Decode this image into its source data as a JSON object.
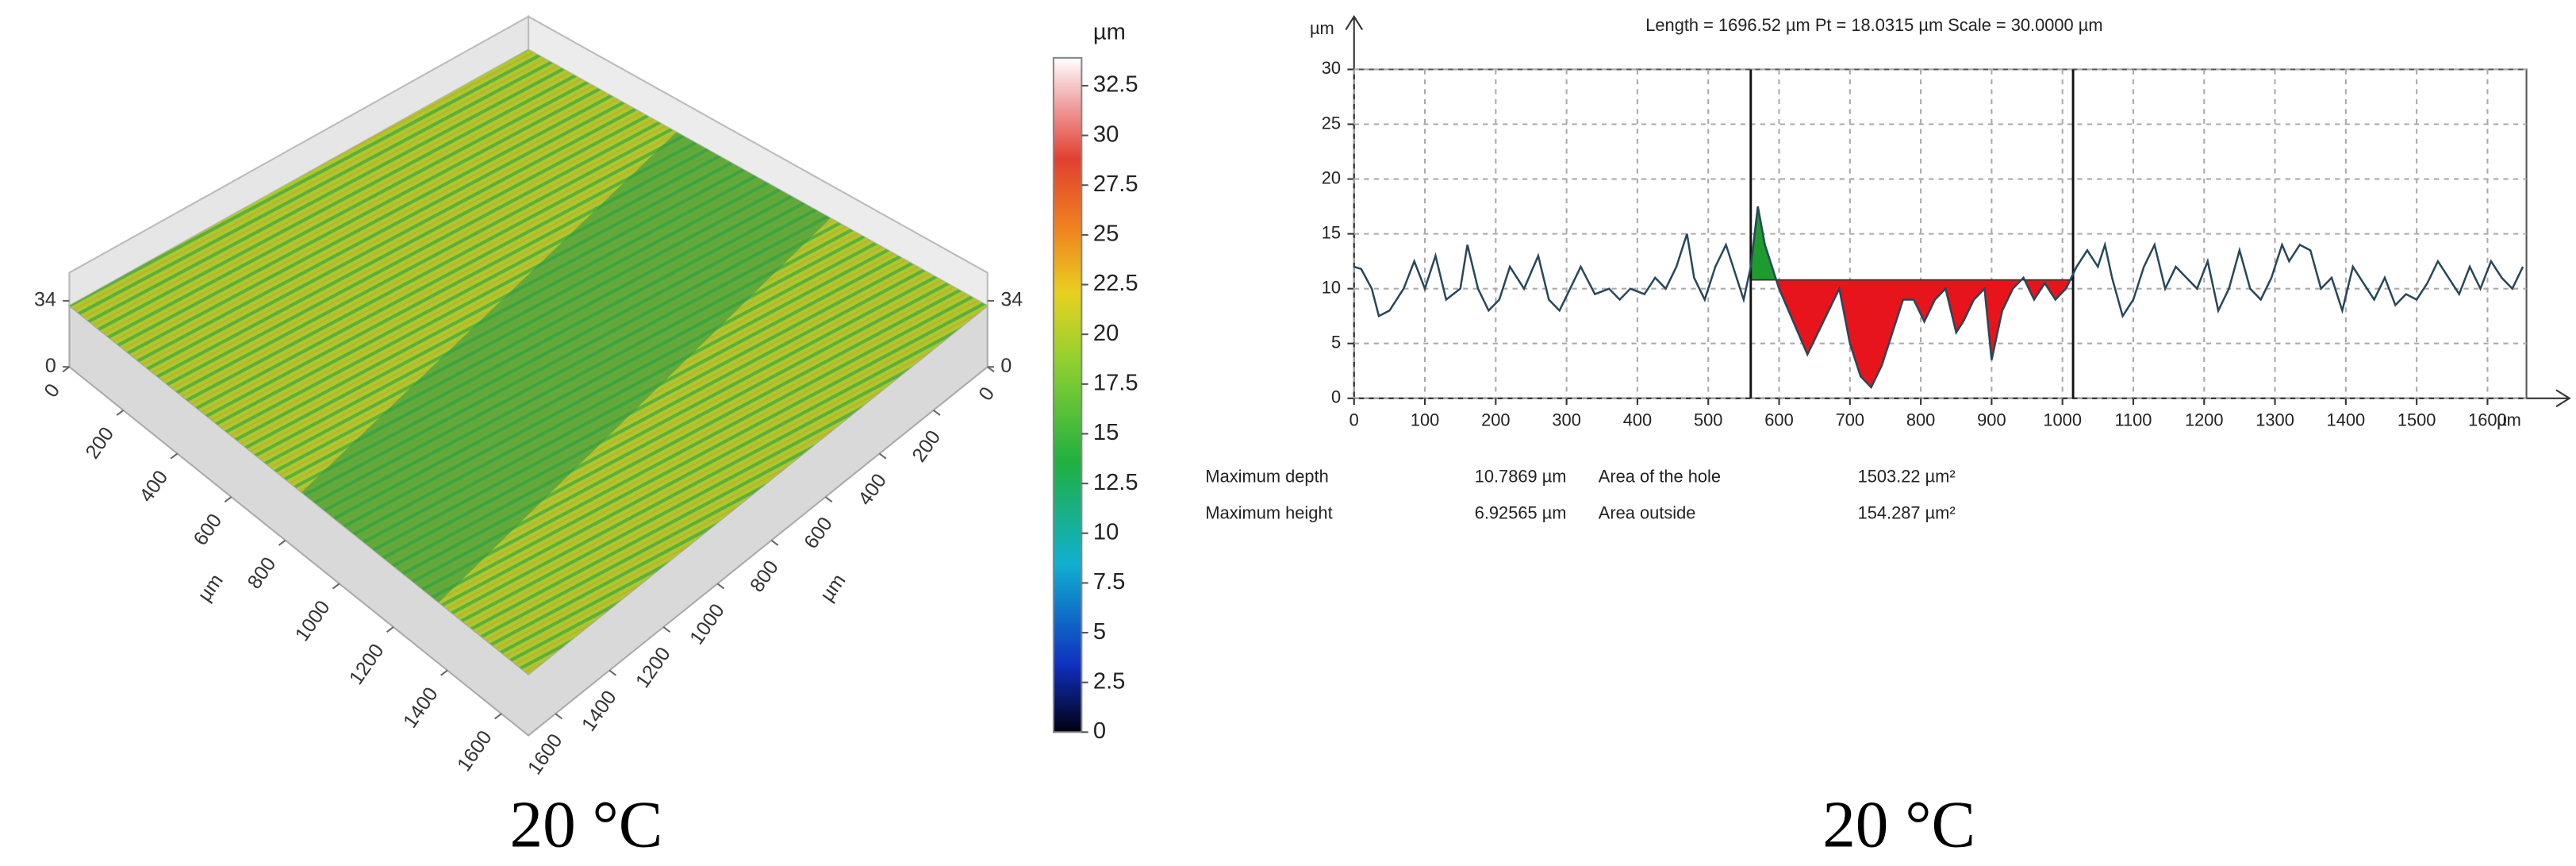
{
  "chart_data": [
    {
      "type": "surface",
      "caption": "20 °C",
      "xlim": [
        0,
        1700
      ],
      "xticks": [
        0,
        200,
        400,
        600,
        800,
        1000,
        1200,
        1400,
        1600
      ],
      "xlabel": "µm",
      "ylim": [
        0,
        1700
      ],
      "yticks": [
        0,
        200,
        400,
        600,
        800,
        1000,
        1200,
        1400,
        1600
      ],
      "ylabel": "µm",
      "zlim": [
        0,
        34
      ],
      "zticks": [
        0,
        34
      ],
      "colorbar": {
        "unit": "µm",
        "clim": [
          0,
          33.9
        ],
        "ticks": [
          0,
          2.5,
          5,
          7.5,
          10,
          12.5,
          15,
          17.5,
          20,
          22.5,
          25,
          27.5,
          30,
          32.5
        ]
      }
    },
    {
      "type": "line",
      "caption": "20 °C",
      "header": "Length = 1696.52 µm  Pt = 18.0315 µm  Scale = 30.0000 µm",
      "xlabel": "µm",
      "ylabel": "µm",
      "xlim": [
        0,
        1655
      ],
      "xticks": [
        0,
        100,
        200,
        300,
        400,
        500,
        600,
        700,
        800,
        900,
        1000,
        1100,
        1200,
        1300,
        1400,
        1500,
        1600
      ],
      "ylim": [
        0,
        30
      ],
      "yticks": [
        0,
        5,
        10,
        15,
        20,
        25,
        30
      ],
      "grid": true,
      "reference_level": 10.8,
      "cursors": [
        560,
        1015
      ],
      "fill_colors": {
        "below": "#e8141c",
        "above": "#1e9a2e"
      },
      "x": [
        0,
        10,
        25,
        35,
        50,
        70,
        85,
        100,
        115,
        130,
        150,
        160,
        175,
        190,
        205,
        220,
        240,
        260,
        275,
        290,
        305,
        320,
        340,
        360,
        375,
        390,
        410,
        425,
        440,
        455,
        470,
        480,
        495,
        510,
        525,
        540,
        550,
        560,
        570,
        580,
        590,
        600,
        620,
        640,
        655,
        670,
        685,
        700,
        715,
        730,
        745,
        760,
        775,
        790,
        805,
        820,
        835,
        850,
        860,
        875,
        890,
        900,
        915,
        930,
        945,
        960,
        975,
        990,
        1005,
        1020,
        1035,
        1050,
        1060,
        1070,
        1085,
        1100,
        1115,
        1130,
        1145,
        1160,
        1175,
        1190,
        1205,
        1220,
        1235,
        1250,
        1265,
        1280,
        1295,
        1310,
        1320,
        1335,
        1350,
        1365,
        1380,
        1395,
        1410,
        1425,
        1440,
        1455,
        1470,
        1485,
        1500,
        1515,
        1530,
        1545,
        1560,
        1575,
        1590,
        1605,
        1620,
        1635,
        1650
      ],
      "series": [
        {
          "color": "#27475a",
          "values": [
            12,
            11.8,
            10,
            7.5,
            8,
            10,
            12.5,
            10,
            13,
            9,
            10,
            14,
            10,
            8,
            9,
            12,
            10,
            13,
            9,
            8,
            10,
            12,
            9.5,
            10,
            9,
            10,
            9.5,
            11,
            10,
            12,
            15,
            11,
            9,
            12,
            14,
            11,
            9,
            12,
            17.5,
            14,
            12,
            10,
            7,
            4,
            6,
            8,
            10,
            5,
            2,
            1,
            3,
            6,
            9,
            9,
            7,
            9,
            10,
            6,
            7,
            9,
            10,
            3.5,
            8,
            10,
            11,
            9,
            10.5,
            9,
            10,
            12,
            13.5,
            12,
            14,
            11,
            7.5,
            9,
            12,
            14,
            10,
            12,
            11,
            10,
            12.5,
            8,
            10,
            13.5,
            10,
            9,
            11,
            14,
            12.5,
            14,
            13.5,
            10,
            11,
            8,
            12,
            10.5,
            9,
            11,
            8.5,
            9.5,
            9,
            10.5,
            12.5,
            11,
            9.5,
            12,
            10,
            12.5,
            11,
            10,
            12
          ]
        }
      ],
      "stats": [
        [
          "Maximum depth",
          "10.7869 µm",
          "Area of the hole",
          "1503.22 µm²"
        ],
        [
          "Maximum height",
          "6.92565 µm",
          "Area outside",
          "154.287 µm²"
        ]
      ]
    }
  ]
}
